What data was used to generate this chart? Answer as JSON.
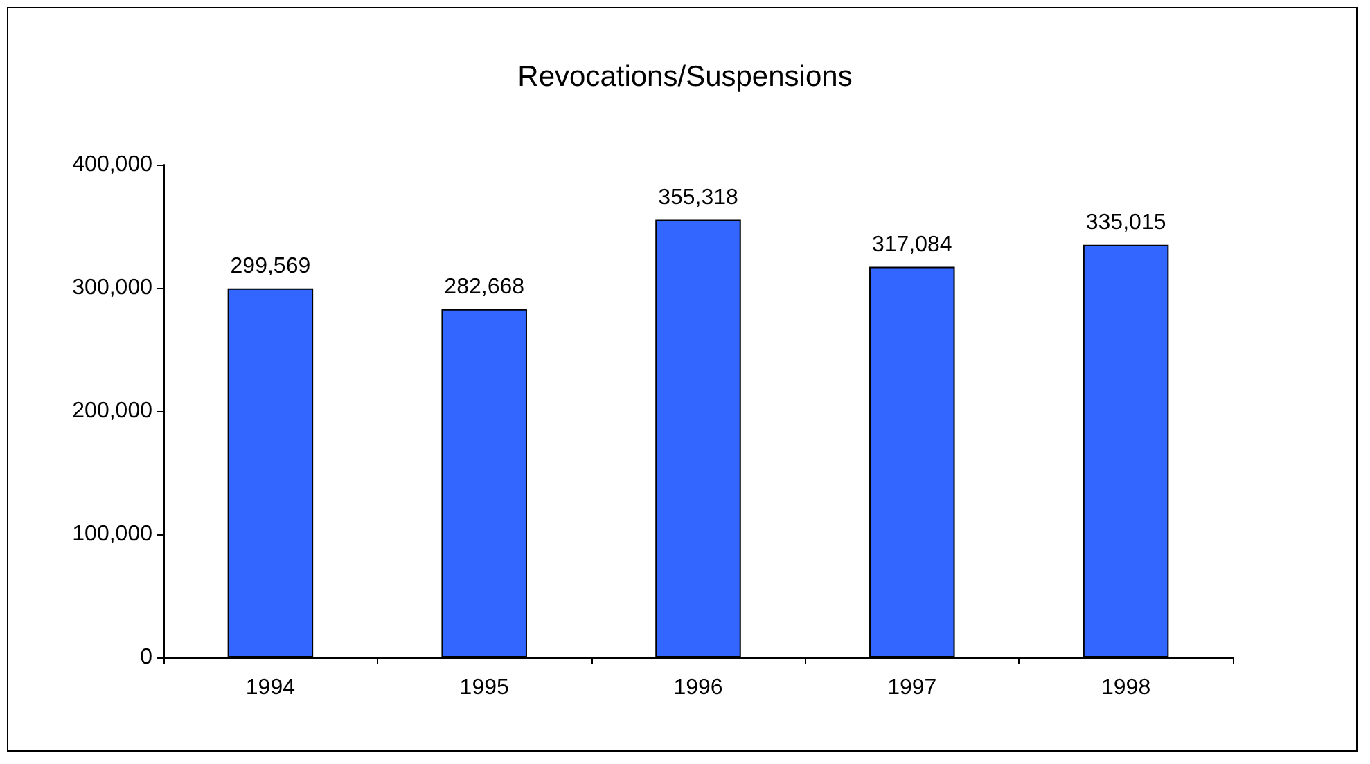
{
  "chart_data": {
    "type": "bar",
    "title": "Revocations/Suspensions",
    "categories": [
      "1994",
      "1995",
      "1996",
      "1997",
      "1998"
    ],
    "values": [
      299569,
      282668,
      355318,
      317084,
      335015
    ],
    "value_labels": [
      "299,569",
      "282,668",
      "355,318",
      "317,084",
      "335,015"
    ],
    "color": "#3366ff",
    "ylim": [
      0,
      400000
    ],
    "yticks": [
      {
        "value": 0,
        "label": "0"
      },
      {
        "value": 100000,
        "label": "100,000"
      },
      {
        "value": 200000,
        "label": "200,000"
      },
      {
        "value": 300000,
        "label": "300,000"
      },
      {
        "value": 400000,
        "label": "400,000"
      }
    ],
    "grid": false
  }
}
